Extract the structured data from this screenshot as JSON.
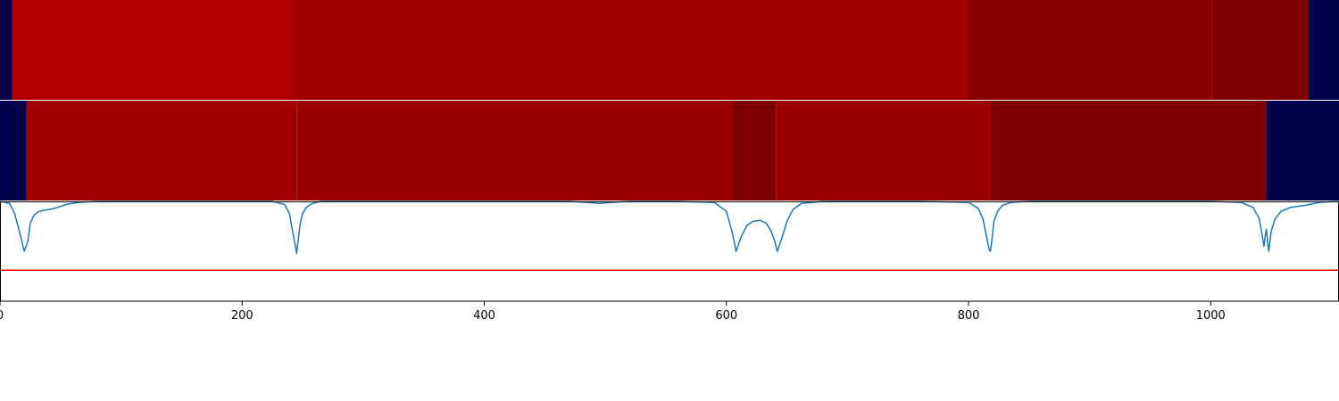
{
  "chart_data": [
    {
      "type": "heatmap",
      "xlim": [
        0,
        1106
      ],
      "segments": [
        {
          "start": 0,
          "end": 10,
          "color": "#00004d"
        },
        {
          "start": 10,
          "end": 240,
          "color": "#b00000"
        },
        {
          "start": 240,
          "end": 800,
          "color": "#a10000"
        },
        {
          "start": 800,
          "end": 1001,
          "color": "#8a0000"
        },
        {
          "start": 1001,
          "end": 1081,
          "color": "#7d0000"
        },
        {
          "start": 1081,
          "end": 1106,
          "color": "#00004d"
        }
      ]
    },
    {
      "type": "heatmap",
      "xlim": [
        0,
        1106
      ],
      "segments": [
        {
          "start": 0,
          "end": 22,
          "color": "#00004d"
        },
        {
          "start": 22,
          "end": 245,
          "color": "#9f0000"
        },
        {
          "start": 245,
          "end": 605,
          "color": "#990000"
        },
        {
          "start": 605,
          "end": 641,
          "color": "#7d0000"
        },
        {
          "start": 641,
          "end": 818,
          "color": "#990000"
        },
        {
          "start": 818,
          "end": 1046,
          "color": "#7d0000"
        },
        {
          "start": 1046,
          "end": 1106,
          "color": "#00004d"
        }
      ]
    },
    {
      "type": "line",
      "xlim": [
        0,
        1106
      ],
      "ylim": [
        0,
        1
      ],
      "xticks": [
        0,
        200,
        400,
        600,
        800,
        1000
      ],
      "series": [
        {
          "color": "#1f77b4",
          "x": [
            0,
            8,
            12,
            16,
            20,
            23,
            25,
            28,
            32,
            36,
            45,
            55,
            65,
            80,
            120,
            180,
            225,
            235,
            239,
            242,
            244,
            245,
            246,
            248,
            250,
            253,
            258,
            265,
            300,
            400,
            470,
            485,
            495,
            505,
            520,
            560,
            590,
            600,
            605,
            608,
            612,
            617,
            622,
            628,
            633,
            637,
            640,
            642,
            646,
            650,
            655,
            662,
            680,
            760,
            800,
            808,
            812,
            815,
            817,
            818,
            819,
            821,
            824,
            828,
            835,
            850,
            900,
            1000,
            1025,
            1035,
            1040,
            1042,
            1044,
            1045,
            1046,
            1047,
            1048,
            1050,
            1053,
            1058,
            1066,
            1078,
            1090,
            1106
          ],
          "y": [
            1.0,
            0.98,
            0.88,
            0.7,
            0.5,
            0.6,
            0.78,
            0.86,
            0.9,
            0.91,
            0.93,
            0.97,
            0.99,
            1.0,
            1.0,
            1.0,
            1.0,
            0.97,
            0.88,
            0.68,
            0.55,
            0.48,
            0.58,
            0.78,
            0.88,
            0.94,
            0.98,
            1.0,
            1.0,
            1.0,
            1.0,
            0.99,
            0.98,
            0.99,
            1.0,
            1.0,
            0.99,
            0.9,
            0.68,
            0.5,
            0.64,
            0.76,
            0.8,
            0.81,
            0.78,
            0.7,
            0.6,
            0.5,
            0.64,
            0.8,
            0.92,
            0.98,
            1.0,
            1.0,
            0.99,
            0.93,
            0.82,
            0.64,
            0.52,
            0.5,
            0.58,
            0.8,
            0.9,
            0.96,
            0.99,
            1.0,
            1.0,
            1.0,
            0.99,
            0.94,
            0.83,
            0.7,
            0.55,
            0.65,
            0.72,
            0.6,
            0.5,
            0.7,
            0.82,
            0.9,
            0.94,
            0.96,
            0.99,
            1.0
          ]
        },
        {
          "color": "#ff0000",
          "x": [
            0,
            1106
          ],
          "y": [
            0.31,
            0.31
          ]
        }
      ]
    }
  ]
}
